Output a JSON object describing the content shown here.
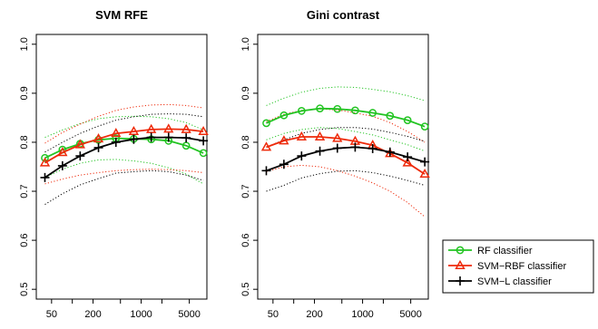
{
  "colors": {
    "rf": "#22c422",
    "svm_rbf": "#ee2a0a",
    "svm_l": "#000000"
  },
  "legend": {
    "placement": "bottom-right",
    "entries": [
      {
        "label": "RF classifier",
        "color": "#22c422",
        "marker": "circle"
      },
      {
        "label": "SVM−RBF classifier",
        "color": "#ee2a0a",
        "marker": "triangle"
      },
      {
        "label": "SVM−L classifier",
        "color": "#000000",
        "marker": "plus"
      }
    ]
  },
  "chart_data": [
    {
      "type": "line",
      "title": "SVM RFE",
      "xscale": "log",
      "xlim": [
        30,
        9000
      ],
      "ylim": [
        0.48,
        1.02
      ],
      "xticks": [
        50,
        200,
        1000,
        5000
      ],
      "xtick_labels": [
        "50",
        "200",
        "1000",
        "5000"
      ],
      "yticks": [
        0.5,
        0.6,
        0.7,
        0.8,
        0.9,
        1.0
      ],
      "ytick_labels": [
        "0.5",
        "0.6",
        "0.7",
        "0.8",
        "0.9",
        "1.0"
      ],
      "x": [
        40,
        72,
        130,
        240,
        430,
        780,
        1400,
        2500,
        4500,
        8000
      ],
      "series": [
        {
          "name": "RF classifier",
          "marker": "circle",
          "values": [
            0.768,
            0.785,
            0.797,
            0.805,
            0.808,
            0.807,
            0.806,
            0.803,
            0.793,
            0.778
          ],
          "band_upper": [
            0.81,
            0.825,
            0.838,
            0.848,
            0.852,
            0.853,
            0.852,
            0.848,
            0.84,
            0.825
          ],
          "band_lower": [
            0.728,
            0.745,
            0.757,
            0.764,
            0.765,
            0.762,
            0.757,
            0.748,
            0.735,
            0.715
          ]
        },
        {
          "name": "SVM−RBF classifier",
          "marker": "triangle",
          "values": [
            0.758,
            0.779,
            0.795,
            0.807,
            0.818,
            0.822,
            0.826,
            0.827,
            0.826,
            0.822
          ],
          "band_upper": [
            0.798,
            0.82,
            0.837,
            0.853,
            0.865,
            0.872,
            0.876,
            0.877,
            0.875,
            0.87
          ],
          "band_lower": [
            0.715,
            0.725,
            0.733,
            0.738,
            0.742,
            0.744,
            0.745,
            0.744,
            0.742,
            0.738
          ]
        },
        {
          "name": "SVM−L classifier",
          "marker": "plus",
          "values": [
            0.728,
            0.752,
            0.772,
            0.789,
            0.8,
            0.806,
            0.81,
            0.81,
            0.809,
            0.803
          ],
          "band_upper": [
            0.78,
            0.8,
            0.818,
            0.833,
            0.845,
            0.852,
            0.857,
            0.858,
            0.857,
            0.852
          ],
          "band_lower": [
            0.673,
            0.695,
            0.713,
            0.726,
            0.737,
            0.74,
            0.742,
            0.74,
            0.733,
            0.722
          ]
        }
      ]
    },
    {
      "type": "line",
      "title": "Gini contrast",
      "xscale": "log",
      "xlim": [
        30,
        9000
      ],
      "ylim": [
        0.48,
        1.02
      ],
      "xticks": [
        50,
        200,
        1000,
        5000
      ],
      "xtick_labels": [
        "50",
        "200",
        "1000",
        "5000"
      ],
      "yticks": [
        0.5,
        0.6,
        0.7,
        0.8,
        0.9,
        1.0
      ],
      "ytick_labels": [
        "0.5",
        "0.6",
        "0.7",
        "0.8",
        "0.9",
        "1.0"
      ],
      "x": [
        40,
        72,
        130,
        240,
        430,
        780,
        1400,
        2500,
        4500,
        8000
      ],
      "series": [
        {
          "name": "RF classifier",
          "marker": "circle",
          "values": [
            0.839,
            0.855,
            0.864,
            0.869,
            0.868,
            0.865,
            0.86,
            0.854,
            0.845,
            0.832
          ],
          "band_upper": [
            0.875,
            0.89,
            0.902,
            0.91,
            0.913,
            0.912,
            0.908,
            0.903,
            0.895,
            0.885
          ],
          "band_lower": [
            0.805,
            0.818,
            0.826,
            0.83,
            0.828,
            0.822,
            0.815,
            0.805,
            0.795,
            0.782
          ]
        },
        {
          "name": "SVM−RBF classifier",
          "marker": "triangle",
          "values": [
            0.79,
            0.803,
            0.811,
            0.811,
            0.808,
            0.802,
            0.794,
            0.777,
            0.758,
            0.735
          ],
          "band_upper": [
            0.842,
            0.857,
            0.865,
            0.868,
            0.866,
            0.86,
            0.853,
            0.84,
            0.822,
            0.8
          ],
          "band_lower": [
            0.74,
            0.75,
            0.753,
            0.75,
            0.742,
            0.731,
            0.717,
            0.7,
            0.677,
            0.648
          ]
        },
        {
          "name": "SVM−L classifier",
          "marker": "plus",
          "values": [
            0.742,
            0.755,
            0.772,
            0.782,
            0.788,
            0.79,
            0.787,
            0.78,
            0.77,
            0.76
          ],
          "band_upper": [
            0.79,
            0.805,
            0.818,
            0.826,
            0.83,
            0.83,
            0.827,
            0.82,
            0.812,
            0.802
          ],
          "band_lower": [
            0.7,
            0.712,
            0.727,
            0.736,
            0.741,
            0.742,
            0.738,
            0.731,
            0.722,
            0.712
          ]
        }
      ]
    }
  ]
}
